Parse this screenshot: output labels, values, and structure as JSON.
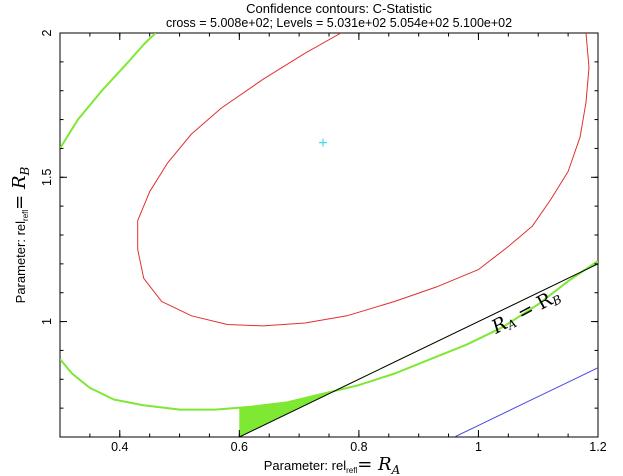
{
  "chart_data": {
    "type": "contour",
    "title": "Confidence contours: C-Statistic",
    "subtitle": "cross = 5.008e+02; Levels =  5.031e+02 5.054e+02 5.100e+02",
    "xlabel_prefix": "Parameter: rel",
    "xlabel_sub": "refl",
    "xlabel_math": "= R",
    "xlabel_math_sub": "A",
    "ylabel_prefix": "Parameter: rel",
    "ylabel_sub": "refl",
    "ylabel_math": "= R",
    "ylabel_math_sub": "B",
    "xlim": [
      0.3,
      1.2
    ],
    "ylim": [
      0.6,
      2.0
    ],
    "xticks": [
      0.4,
      0.6,
      0.8,
      1,
      1.2
    ],
    "yticks": [
      1,
      1.5,
      2
    ],
    "xtick_labels": [
      "0.4",
      "0.6",
      "0.8",
      "1",
      "1.2"
    ],
    "ytick_labels": [
      "1",
      "1.5",
      "2"
    ],
    "cross": {
      "x": 0.74,
      "y": 1.62,
      "color": "#40d8e8"
    },
    "series": [
      {
        "level": "5.031e+02",
        "color": "#e03030",
        "segments": [
          [
            [
              0.77,
              2.0
            ],
            [
              0.71,
              1.93
            ],
            [
              0.64,
              1.84
            ],
            [
              0.57,
              1.74
            ],
            [
              0.52,
              1.65
            ],
            [
              0.48,
              1.55
            ],
            [
              0.45,
              1.45
            ],
            [
              0.43,
              1.35
            ],
            [
              0.43,
              1.25
            ],
            [
              0.44,
              1.15
            ],
            [
              0.47,
              1.07
            ],
            [
              0.52,
              1.02
            ],
            [
              0.58,
              0.99
            ],
            [
              0.64,
              0.985
            ],
            [
              0.71,
              0.995
            ],
            [
              0.78,
              1.02
            ],
            [
              0.86,
              1.07
            ],
            [
              0.93,
              1.12
            ],
            [
              1.0,
              1.18
            ],
            [
              1.05,
              1.26
            ],
            [
              1.09,
              1.33
            ],
            [
              1.12,
              1.42
            ],
            [
              1.15,
              1.52
            ],
            [
              1.17,
              1.64
            ],
            [
              1.18,
              1.76
            ],
            [
              1.185,
              1.88
            ],
            [
              1.18,
              2.0
            ]
          ]
        ]
      },
      {
        "level": "5.054e+02",
        "color": "#7ee832",
        "segments": [
          [
            [
              0.3,
              1.6
            ],
            [
              0.33,
              1.7
            ],
            [
              0.37,
              1.8
            ],
            [
              0.41,
              1.89
            ],
            [
              0.44,
              1.96
            ],
            [
              0.46,
              2.0
            ]
          ],
          [
            [
              0.3,
              0.87
            ],
            [
              0.32,
              0.82
            ],
            [
              0.35,
              0.77
            ],
            [
              0.39,
              0.73
            ],
            [
              0.44,
              0.71
            ],
            [
              0.5,
              0.695
            ],
            [
              0.56,
              0.695
            ],
            [
              0.62,
              0.705
            ],
            [
              0.68,
              0.72
            ],
            [
              0.74,
              0.75
            ],
            [
              0.8,
              0.78
            ],
            [
              0.86,
              0.82
            ],
            [
              0.92,
              0.87
            ],
            [
              0.98,
              0.92
            ],
            [
              1.04,
              0.98
            ],
            [
              1.1,
              1.06
            ],
            [
              1.15,
              1.14
            ],
            [
              1.2,
              1.21
            ]
          ]
        ]
      },
      {
        "level": "5.100e+02",
        "color": "#4848e0",
        "segments": [
          [
            [
              0.96,
              0.6
            ],
            [
              1.01,
              0.65
            ],
            [
              1.06,
              0.7
            ],
            [
              1.11,
              0.75
            ],
            [
              1.16,
              0.8
            ],
            [
              1.2,
              0.84
            ]
          ]
        ]
      }
    ],
    "line": {
      "label_main": "R",
      "label_sub1": "A",
      "label_eq": " = R",
      "label_sub2": "B",
      "points": [
        [
          0.6,
          0.6
        ],
        [
          1.2,
          1.2
        ]
      ],
      "color": "#000000"
    }
  }
}
